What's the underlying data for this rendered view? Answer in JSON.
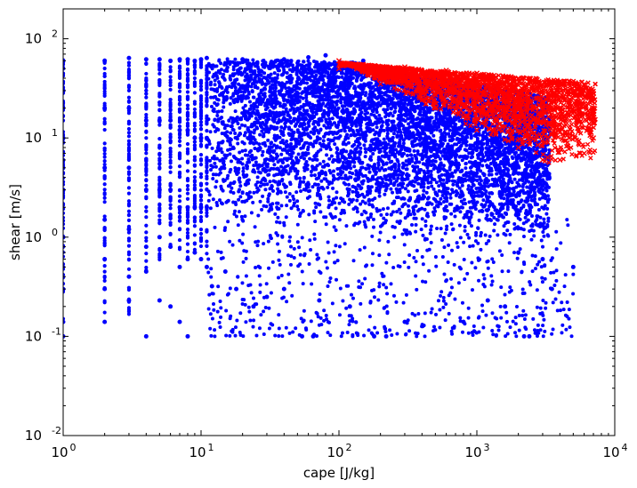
{
  "chart_data": {
    "type": "scatter",
    "title": "",
    "xlabel": "cape [J/kg]",
    "ylabel": "shear [m/s]",
    "x_scale": "log",
    "y_scale": "log",
    "xlim": [
      1,
      10000
    ],
    "ylim": [
      0.01,
      200
    ],
    "grid": false,
    "legend": "none",
    "x_ticks": [
      {
        "value": 1,
        "base": "10",
        "exp": "0"
      },
      {
        "value": 10,
        "base": "10",
        "exp": "1"
      },
      {
        "value": 100,
        "base": "10",
        "exp": "2"
      },
      {
        "value": 1000,
        "base": "10",
        "exp": "3"
      },
      {
        "value": 10000,
        "base": "10",
        "exp": "4"
      }
    ],
    "y_ticks": [
      {
        "value": 0.01,
        "base": "10",
        "exp": "-2"
      },
      {
        "value": 0.1,
        "base": "10",
        "exp": "-1"
      },
      {
        "value": 1,
        "base": "10",
        "exp": "0"
      },
      {
        "value": 10,
        "base": "10",
        "exp": "1"
      },
      {
        "value": 100,
        "base": "10",
        "exp": "2"
      }
    ],
    "series": [
      {
        "color": "#0000ff",
        "marker": "dot",
        "description_points": [
          [
            1,
            60
          ],
          [
            1,
            30
          ],
          [
            1,
            10
          ],
          [
            1,
            3
          ],
          [
            1,
            1
          ],
          [
            1,
            0.3
          ],
          [
            1,
            0.14
          ],
          [
            1,
            0.1
          ],
          [
            2,
            60
          ],
          [
            2,
            20
          ],
          [
            2,
            5
          ],
          [
            2,
            1.5
          ],
          [
            2,
            0.6
          ],
          [
            2,
            0.3
          ],
          [
            2,
            0.14
          ],
          [
            3,
            64
          ],
          [
            3,
            20
          ],
          [
            3,
            5
          ],
          [
            3,
            1.2
          ],
          [
            3,
            0.4
          ],
          [
            3,
            0.23
          ],
          [
            4,
            62
          ],
          [
            4,
            15
          ],
          [
            4,
            3
          ],
          [
            4,
            0.8
          ],
          [
            4,
            0.45
          ],
          [
            4,
            0.1
          ],
          [
            5,
            62
          ],
          [
            5,
            15
          ],
          [
            5,
            3
          ],
          [
            5,
            1
          ],
          [
            5,
            0.23
          ],
          [
            6,
            60
          ],
          [
            6,
            15
          ],
          [
            6,
            3
          ],
          [
            6,
            0.8
          ],
          [
            6,
            0.2
          ],
          [
            7,
            62
          ],
          [
            7,
            12
          ],
          [
            7,
            2
          ],
          [
            7,
            0.5
          ],
          [
            7,
            0.14
          ],
          [
            8,
            62
          ],
          [
            8,
            12
          ],
          [
            8,
            2
          ],
          [
            8,
            0.6
          ],
          [
            8,
            0.1
          ],
          [
            9,
            60
          ],
          [
            9,
            10
          ],
          [
            9,
            2
          ],
          [
            9,
            0.7
          ],
          [
            10,
            62
          ],
          [
            10,
            10
          ],
          [
            10,
            2
          ],
          [
            10,
            0.6
          ],
          [
            11,
            64
          ],
          [
            11,
            10
          ],
          [
            11,
            2
          ],
          [
            11,
            0.5
          ],
          [
            12,
            0.32
          ],
          [
            15,
            0.45
          ],
          [
            18,
            0.3
          ],
          [
            24,
            0.2
          ],
          [
            30,
            0.25
          ],
          [
            40,
            0.3
          ],
          [
            54,
            0.1
          ],
          [
            65,
            0.1
          ],
          [
            72,
            0.23
          ],
          [
            120,
            0.2
          ],
          [
            180,
            0.1
          ],
          [
            220,
            0.1
          ],
          [
            300,
            0.14
          ],
          [
            800,
            0.14
          ],
          [
            1200,
            0.23
          ],
          [
            1600,
            0.2
          ],
          [
            2200,
            0.1
          ],
          [
            2400,
            0.1
          ],
          [
            3500,
            0.3
          ],
          [
            5000,
            0.5
          ],
          [
            3000,
            0.6
          ],
          [
            2000,
            0.7
          ],
          [
            80,
            68
          ],
          [
            60,
            65
          ],
          [
            40,
            62
          ],
          [
            20,
            62
          ],
          [
            150,
            60
          ]
        ]
      },
      {
        "color": "#ff0000",
        "marker": "x",
        "description_points": [
          [
            100,
            60
          ],
          [
            150,
            55
          ],
          [
            300,
            52
          ],
          [
            600,
            48
          ],
          [
            1000,
            45
          ],
          [
            2000,
            40
          ],
          [
            4000,
            35
          ],
          [
            6000,
            30
          ],
          [
            7000,
            20
          ],
          [
            7000,
            10
          ],
          [
            6000,
            7
          ],
          [
            4000,
            6
          ],
          [
            3000,
            6
          ],
          [
            2000,
            8
          ],
          [
            1000,
            12
          ],
          [
            500,
            20
          ],
          [
            200,
            35
          ],
          [
            100,
            50
          ]
        ]
      }
    ]
  }
}
